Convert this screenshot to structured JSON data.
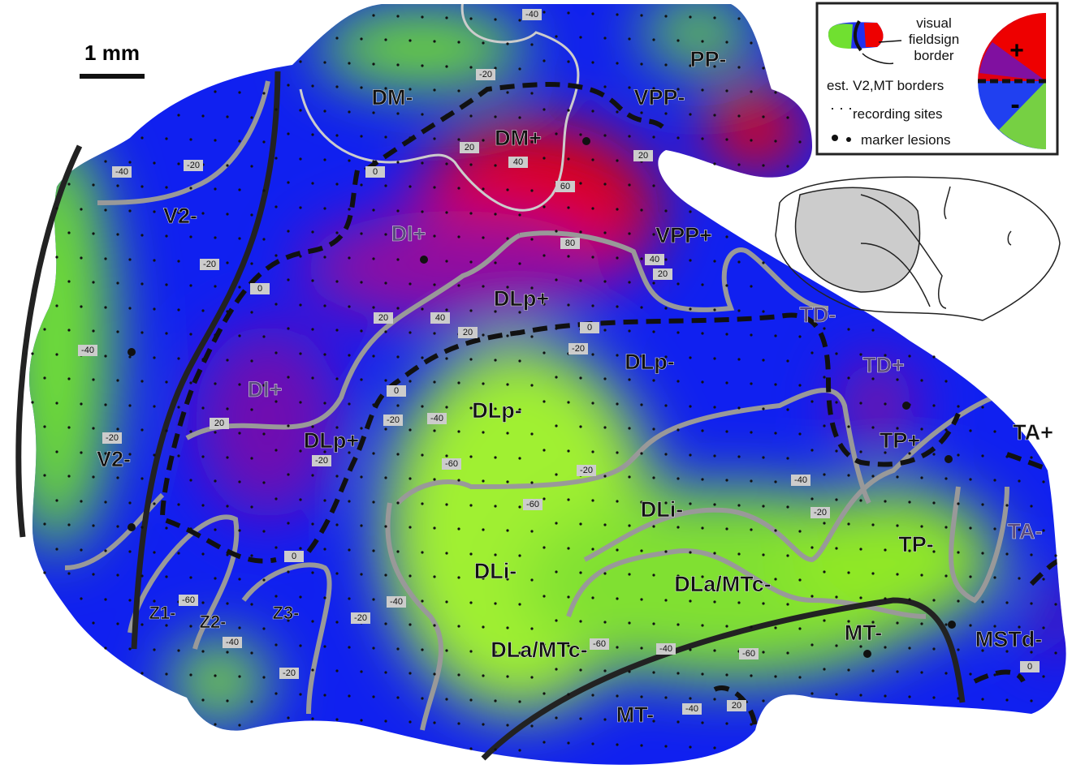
{
  "scale_bar": "1 mm",
  "legend": {
    "fieldsign_lines": [
      "visual",
      "fieldsign",
      "border"
    ],
    "borders": "est. V2,MT borders",
    "sites": "recording sites",
    "lesions": "marker lesions",
    "plus": "+",
    "minus": "-"
  },
  "areas": [
    "DM-",
    "DM+",
    "PP-",
    "VPP-",
    "V2-",
    "DI+",
    "VPP+",
    "DLp+",
    "TD-",
    "DLp-",
    "TD+",
    "DI+",
    "DLp-",
    "DLp+",
    "V2-",
    "TP+",
    "TA+",
    "DLi-",
    "TA-",
    "TP-",
    "DLi-",
    "DLa/MTc-",
    "Z1-",
    "Z2-",
    "Z3-",
    "MT-",
    "MSTd-",
    "DLa/MTc-",
    "MT-"
  ],
  "contour_labels": [
    "-40",
    "-20",
    "0",
    "20",
    "40",
    "60",
    "20",
    "-40",
    "-20",
    "-20",
    "0",
    "80",
    "40",
    "20",
    "0",
    "-20",
    "20",
    "40",
    "20",
    "-40",
    "0",
    "-20",
    "20",
    "-40",
    "-20",
    "-20",
    "-40",
    "-20",
    "0",
    "-60",
    "-20",
    "-60",
    "-40",
    "-20",
    "-60",
    "-40",
    "-20",
    "-60",
    "-40",
    "20",
    "-40",
    "-60",
    "0"
  ]
}
